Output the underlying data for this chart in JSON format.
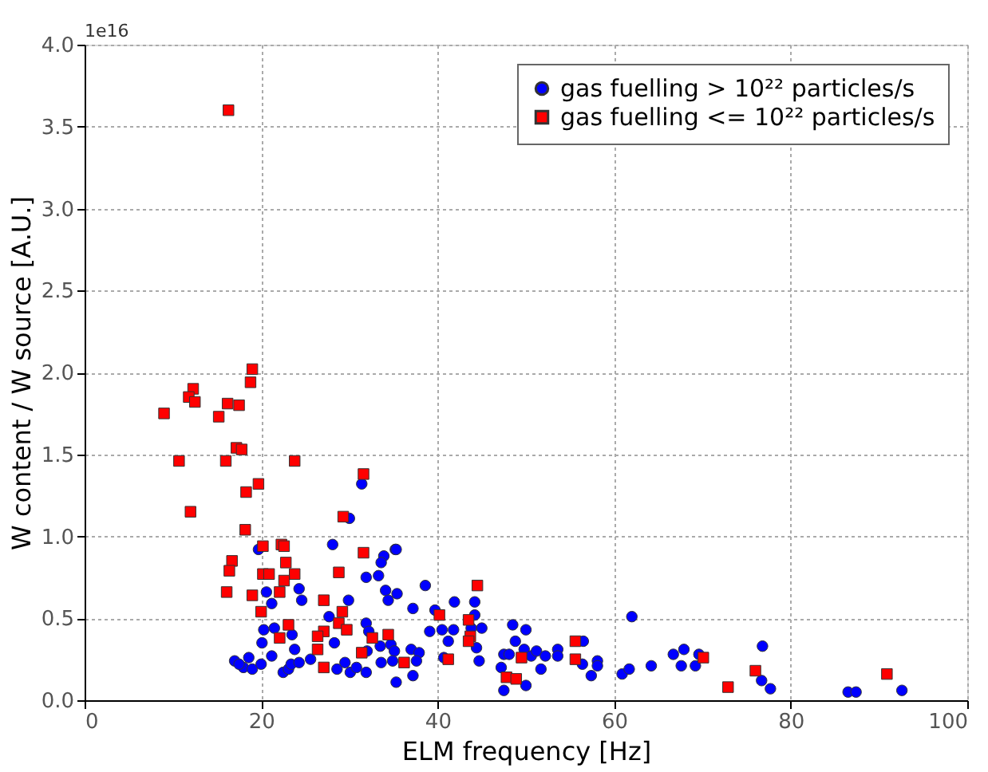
{
  "chart_data": {
    "type": "scatter",
    "xlabel": "ELM frequency [Hz]",
    "ylabel": "W content / W source  [A.U.]",
    "annotations": [
      "1e16"
    ],
    "xlim": [
      0,
      100
    ],
    "xticks": [
      0,
      20,
      40,
      60,
      80,
      100
    ],
    "ylim": [
      0,
      4.0
    ],
    "yticks": [
      {
        "value": 0,
        "label": "0.0"
      },
      0.5,
      {
        "value": 1,
        "label": "1.0"
      },
      1.5,
      {
        "value": 2,
        "label": "2.0"
      },
      2.5,
      {
        "value": 3,
        "label": "3.0"
      },
      3.5,
      {
        "value": 4,
        "label": "4.0"
      }
    ],
    "grid": true,
    "legend": "top right",
    "series": [
      {
        "name": "gas fuelling > 10²² particles/s",
        "color": "#0000ff",
        "marker": "circle",
        "x": [
          31.4,
          30.0,
          19.7,
          28.1,
          35.2,
          33.9,
          33.6,
          31.9,
          33.3,
          34.1,
          35.4,
          34.4,
          24.3,
          24.6,
          20.6,
          21.2,
          29.9,
          27.7,
          31.9,
          20.3,
          21.5,
          20.1,
          23.5,
          23.8,
          28.3,
          32.2,
          33.5,
          34.7,
          35.1,
          32.0,
          21.2,
          17.0,
          18.6,
          18.0,
          19.0,
          20.0,
          17.5,
          22.5,
          23.1,
          23.4,
          24.3,
          25.6,
          28.6,
          29.5,
          30.1,
          30.8,
          31.9,
          33.6,
          34.9,
          35.3,
          35.3,
          38.6,
          37.2,
          39.7,
          41.9,
          44.2,
          44.2,
          39.1,
          40.5,
          41.8,
          45.0,
          41.2,
          43.8,
          44.4,
          37.0,
          37.9,
          37.6,
          37.2,
          40.7,
          44.7,
          48.5,
          50.0,
          48.8,
          49.8,
          47.5,
          48.1,
          47.2,
          47.5,
          50.0,
          50.6,
          51.2,
          51.7,
          52.2,
          53.6,
          53.6,
          56.5,
          56.4,
          57.4,
          58.1,
          58.1,
          60.9,
          61.7,
          62.0,
          64.2,
          66.7,
          67.9,
          67.6,
          69.2,
          69.6,
          76.8,
          76.7,
          77.7,
          86.5,
          87.4,
          92.6
        ],
        "values": [
          1.32,
          1.11,
          0.92,
          0.95,
          0.92,
          0.88,
          0.84,
          0.75,
          0.76,
          0.67,
          0.65,
          0.61,
          0.68,
          0.61,
          0.66,
          0.59,
          0.61,
          0.51,
          0.47,
          0.43,
          0.44,
          0.35,
          0.4,
          0.31,
          0.35,
          0.42,
          0.33,
          0.34,
          0.3,
          0.3,
          0.27,
          0.24,
          0.26,
          0.2,
          0.19,
          0.22,
          0.22,
          0.17,
          0.19,
          0.22,
          0.23,
          0.25,
          0.19,
          0.23,
          0.17,
          0.2,
          0.17,
          0.23,
          0.24,
          0.11,
          0.92,
          0.7,
          0.56,
          0.55,
          0.6,
          0.6,
          0.52,
          0.42,
          0.43,
          0.43,
          0.44,
          0.36,
          0.44,
          0.32,
          0.31,
          0.29,
          0.24,
          0.15,
          0.26,
          0.24,
          0.46,
          0.43,
          0.36,
          0.31,
          0.28,
          0.28,
          0.2,
          0.06,
          0.09,
          0.27,
          0.3,
          0.19,
          0.27,
          0.31,
          0.27,
          0.36,
          0.22,
          0.15,
          0.24,
          0.21,
          0.16,
          0.19,
          0.51,
          0.21,
          0.28,
          0.31,
          0.21,
          0.21,
          0.28,
          0.33,
          0.12,
          0.07,
          0.05,
          0.05,
          0.06
        ]
      },
      {
        "name": "gas fuelling <= 10²² particles/s",
        "color": "#ff0000",
        "marker": "square",
        "x": [
          16.3,
          19.0,
          18.8,
          12.3,
          11.8,
          12.5,
          9.0,
          15.2,
          16.2,
          17.5,
          17.2,
          17.8,
          10.7,
          16.0,
          23.8,
          31.6,
          19.7,
          18.3,
          12.0,
          29.3,
          18.2,
          20.2,
          22.3,
          22.6,
          31.6,
          16.7,
          16.4,
          22.8,
          20.2,
          20.9,
          23.8,
          22.6,
          28.8,
          22.1,
          16.1,
          19.0,
          20.0,
          27.1,
          29.2,
          28.8,
          29.7,
          23.1,
          22.1,
          27.1,
          26.4,
          26.4,
          32.6,
          34.4,
          31.4,
          27.1,
          36.2,
          44.5,
          40.2,
          43.5,
          43.7,
          43.5,
          41.2,
          49.5,
          47.8,
          48.9,
          55.6,
          55.6,
          70.1,
          72.9,
          76.0,
          90.9
        ],
        "values": [
          3.6,
          2.02,
          1.94,
          1.9,
          1.85,
          1.82,
          1.75,
          1.73,
          1.81,
          1.8,
          1.54,
          1.53,
          1.46,
          1.46,
          1.46,
          1.38,
          1.32,
          1.27,
          1.15,
          1.12,
          1.04,
          0.94,
          0.95,
          0.94,
          0.9,
          0.85,
          0.79,
          0.84,
          0.77,
          0.77,
          0.77,
          0.73,
          0.78,
          0.66,
          0.66,
          0.64,
          0.54,
          0.61,
          0.54,
          0.47,
          0.43,
          0.46,
          0.38,
          0.42,
          0.39,
          0.31,
          0.38,
          0.4,
          0.29,
          0.2,
          0.23,
          0.7,
          0.52,
          0.49,
          0.39,
          0.36,
          0.25,
          0.26,
          0.14,
          0.13,
          0.36,
          0.25,
          0.26,
          0.08,
          0.18,
          0.16
        ]
      }
    ]
  }
}
